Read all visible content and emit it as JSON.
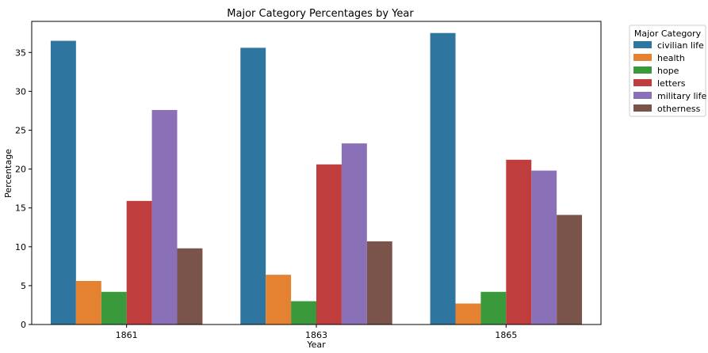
{
  "chart_data": {
    "type": "bar",
    "title": "Major Category Percentages by Year",
    "xlabel": "Year",
    "ylabel": "Percentage",
    "categories": [
      "1861",
      "1863",
      "1865"
    ],
    "ylim": [
      0,
      39
    ],
    "yticks": [
      0,
      5,
      10,
      15,
      20,
      25,
      30,
      35
    ],
    "grid": false,
    "legend": {
      "title": "Major Category",
      "placement": "outside-top-right"
    },
    "series": [
      {
        "name": "civilian life",
        "color": "#2e75a0",
        "values": [
          36.5,
          35.6,
          37.5
        ]
      },
      {
        "name": "health",
        "color": "#e58231",
        "values": [
          5.6,
          6.4,
          2.7
        ]
      },
      {
        "name": "hope",
        "color": "#3a9a3b",
        "values": [
          4.2,
          3.0,
          4.2
        ]
      },
      {
        "name": "letters",
        "color": "#c03d3e",
        "values": [
          15.9,
          20.6,
          21.2
        ]
      },
      {
        "name": "military life",
        "color": "#8a70b6",
        "values": [
          27.6,
          23.3,
          19.8
        ]
      },
      {
        "name": "otherness",
        "color": "#7a544a",
        "values": [
          9.8,
          10.7,
          14.1
        ]
      }
    ]
  }
}
